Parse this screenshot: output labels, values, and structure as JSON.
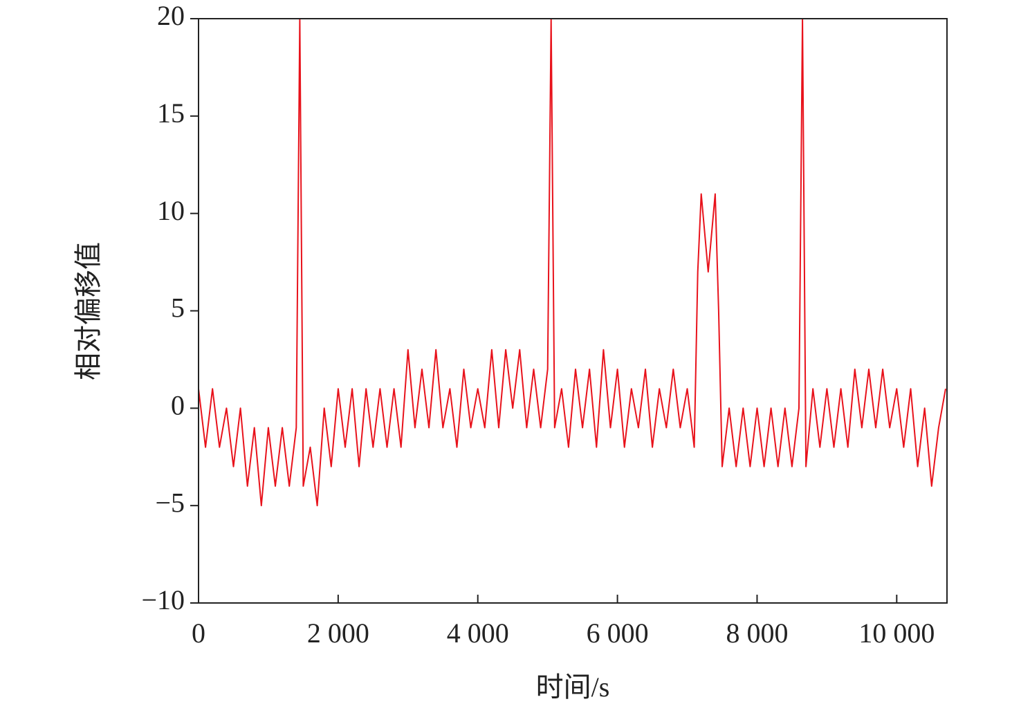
{
  "chart_data": {
    "type": "line",
    "color": "#e8121b",
    "xlabel": "时间/s",
    "ylabel": "相对偏移值",
    "xlim": [
      0,
      10720
    ],
    "ylim": [
      -10,
      20
    ],
    "xticks": [
      0,
      {
        "value": 2000,
        "label": "2 000"
      },
      {
        "value": 4000,
        "label": "4 000"
      },
      {
        "value": 6000,
        "label": "6 000"
      },
      {
        "value": 8000,
        "label": "8 000"
      },
      {
        "value": 10000,
        "label": "10 000"
      }
    ],
    "yticks": [
      {
        "value": -10,
        "label": "−10"
      },
      {
        "value": -5,
        "label": "−5"
      },
      0,
      5,
      10,
      15,
      20
    ],
    "x": [
      0,
      100,
      200,
      300,
      400,
      500,
      600,
      700,
      800,
      900,
      1000,
      1100,
      1200,
      1300,
      1400,
      1450,
      1500,
      1600,
      1700,
      1800,
      1900,
      2000,
      2100,
      2200,
      2300,
      2400,
      2500,
      2600,
      2700,
      2800,
      2900,
      3000,
      3100,
      3200,
      3300,
      3400,
      3500,
      3600,
      3700,
      3800,
      3900,
      4000,
      4100,
      4200,
      4300,
      4400,
      4500,
      4600,
      4700,
      4800,
      4900,
      5000,
      5050,
      5100,
      5200,
      5300,
      5400,
      5500,
      5600,
      5700,
      5800,
      5900,
      6000,
      6100,
      6200,
      6300,
      6400,
      6500,
      6600,
      6700,
      6800,
      6900,
      7000,
      7100,
      7150,
      7200,
      7300,
      7400,
      7450,
      7500,
      7600,
      7700,
      7800,
      7900,
      8000,
      8100,
      8200,
      8300,
      8400,
      8500,
      8600,
      8650,
      8700,
      8800,
      8900,
      9000,
      9100,
      9200,
      9300,
      9400,
      9500,
      9600,
      9700,
      9800,
      9900,
      10000,
      10100,
      10200,
      10300,
      10400,
      10500,
      10600,
      10700
    ],
    "values": [
      1,
      -2,
      1,
      -2,
      0,
      -3,
      0,
      -4,
      -1,
      -5,
      -1,
      -4,
      -1,
      -4,
      -1,
      20,
      -4,
      -2,
      -5,
      0,
      -3,
      1,
      -2,
      1,
      -3,
      1,
      -2,
      1,
      -2,
      1,
      -2,
      3,
      -1,
      2,
      -1,
      3,
      -1,
      1,
      -2,
      2,
      -1,
      1,
      -1,
      3,
      -1,
      3,
      0,
      3,
      -1,
      2,
      -1,
      2,
      20,
      -1,
      1,
      -2,
      2,
      -1,
      2,
      -2,
      3,
      -1,
      2,
      -2,
      1,
      -1,
      2,
      -2,
      1,
      -1,
      2,
      -1,
      1,
      -2,
      7,
      11,
      7,
      11,
      5,
      -3,
      0,
      -3,
      0,
      -3,
      0,
      -3,
      0,
      -3,
      0,
      -3,
      0,
      20,
      -3,
      1,
      -2,
      1,
      -2,
      1,
      -2,
      2,
      -1,
      2,
      -1,
      2,
      -1,
      1,
      -2,
      1,
      -3,
      0,
      -4,
      -1,
      1
    ]
  }
}
